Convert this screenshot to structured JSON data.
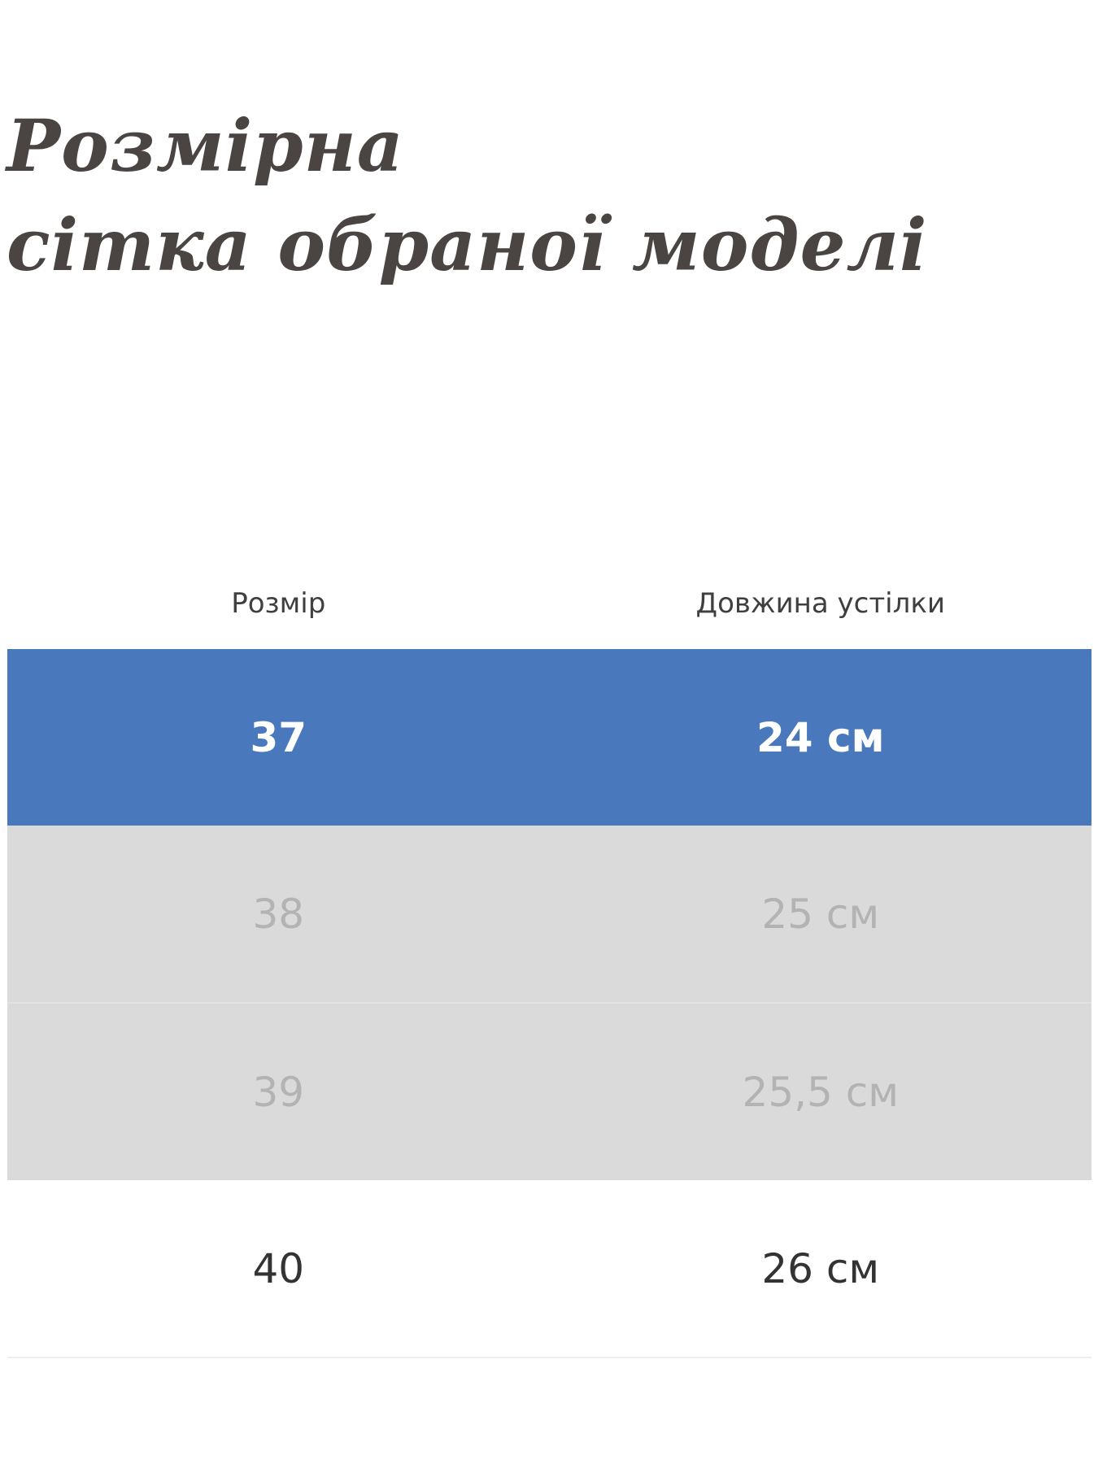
{
  "title": [
    "Розмірна",
    "сітка обраної моделі"
  ],
  "table": {
    "header": [
      "Розмір",
      "Довжина устілки"
    ],
    "rows": [
      [
        "37",
        "24 см"
      ],
      [
        "38",
        "25 см"
      ],
      [
        "39",
        "25,5 см"
      ],
      [
        "40",
        "26 см"
      ]
    ]
  }
}
